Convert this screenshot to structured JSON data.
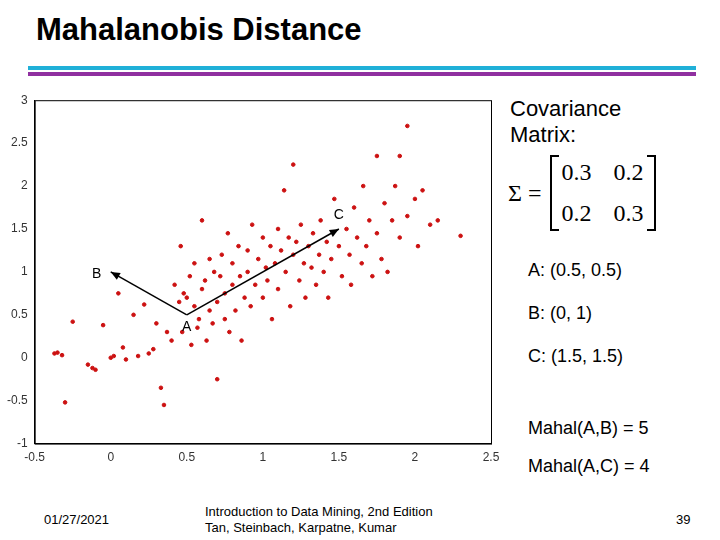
{
  "title": "Mahalanobis Distance",
  "chart_data": {
    "type": "scatter",
    "color": "#cc1111",
    "marker": "dot",
    "xlim": [
      -0.5,
      2.5
    ],
    "xticks": [
      -0.5,
      0,
      0.5,
      1,
      1.5,
      2,
      2.5
    ],
    "ylim": [
      -1,
      3
    ],
    "yticks": [
      -1,
      -0.5,
      0,
      0.5,
      1,
      1.5,
      2,
      2.5,
      3
    ],
    "grid": false,
    "x": [
      -0.37,
      -0.35,
      -0.32,
      -0.3,
      -0.25,
      -0.15,
      -0.12,
      -0.1,
      -0.05,
      0,
      0.02,
      0.05,
      0.08,
      0.1,
      0.15,
      0.18,
      0.22,
      0.25,
      0.28,
      0.3,
      0.33,
      0.35,
      0.37,
      0.4,
      0.42,
      0.45,
      0.46,
      0.47,
      0.48,
      0.5,
      0.52,
      0.53,
      0.55,
      0.55,
      0.57,
      0.58,
      0.6,
      0.6,
      0.62,
      0.63,
      0.65,
      0.65,
      0.67,
      0.68,
      0.7,
      0.7,
      0.72,
      0.73,
      0.75,
      0.75,
      0.77,
      0.78,
      0.8,
      0.8,
      0.82,
      0.84,
      0.85,
      0.86,
      0.88,
      0.9,
      0.9,
      0.92,
      0.93,
      0.95,
      0.97,
      1.0,
      1.0,
      1.02,
      1.03,
      1.05,
      1.06,
      1.08,
      1.1,
      1.1,
      1.12,
      1.14,
      1.15,
      1.17,
      1.18,
      1.2,
      1.2,
      1.22,
      1.24,
      1.25,
      1.27,
      1.28,
      1.3,
      1.32,
      1.33,
      1.35,
      1.37,
      1.38,
      1.4,
      1.42,
      1.43,
      1.45,
      1.47,
      1.5,
      1.52,
      1.55,
      1.57,
      1.58,
      1.6,
      1.62,
      1.65,
      1.66,
      1.68,
      1.7,
      1.72,
      1.75,
      1.75,
      1.78,
      1.8,
      1.82,
      1.85,
      1.87,
      1.9,
      1.9,
      1.95,
      1.95,
      2.0,
      2.02,
      2.05,
      2.1,
      2.15,
      2.3
    ],
    "values": [
      0.05,
      0.06,
      0.03,
      -0.52,
      0.42,
      -0.08,
      -0.12,
      -0.14,
      0.38,
      0.0,
      0.02,
      0.75,
      0.12,
      -0.02,
      0.5,
      0.02,
      0.62,
      0.05,
      0.1,
      0.4,
      -0.35,
      -0.55,
      0.3,
      0.2,
      0.85,
      0.65,
      1.3,
      0.3,
      0.75,
      0.7,
      0.95,
      0.15,
      0.6,
      1.1,
      0.35,
      0.45,
      0.8,
      1.6,
      0.9,
      0.2,
      1.15,
      0.55,
      0.4,
      1.0,
      0.65,
      -0.25,
      0.95,
      1.2,
      0.45,
      0.75,
      1.45,
      0.3,
      0.85,
      1.1,
      0.55,
      1.3,
      0.95,
      0.2,
      0.7,
      1.25,
      1.0,
      0.6,
      1.55,
      0.85,
      1.15,
      1.4,
      0.7,
      1.05,
      0.9,
      1.3,
      0.45,
      1.1,
      1.5,
      0.8,
      1.25,
      1.95,
      1.0,
      1.4,
      0.6,
      1.2,
      2.25,
      1.35,
      0.9,
      1.55,
      1.1,
      0.7,
      1.3,
      1.05,
      1.45,
      0.85,
      1.2,
      1.6,
      1.0,
      1.35,
      0.7,
      1.15,
      1.85,
      1.3,
      0.95,
      1.5,
      1.2,
      0.85,
      1.75,
      1.4,
      1.1,
      2.0,
      1.3,
      1.6,
      0.95,
      2.35,
      1.45,
      1.15,
      1.8,
      1.0,
      1.6,
      2.0,
      2.35,
      1.4,
      2.7,
      1.65,
      1.85,
      1.3,
      1.95,
      1.55,
      1.6,
      1.42
    ],
    "annotations": [
      {
        "text": "A",
        "x": 0.5,
        "y": 0.5
      },
      {
        "text": "B",
        "x": 0,
        "y": 1
      },
      {
        "text": "C",
        "x": 1.5,
        "y": 1.5
      }
    ],
    "arrows": [
      {
        "from": "A",
        "to": "B"
      },
      {
        "from": "A",
        "to": "C"
      }
    ]
  },
  "covariance": {
    "label": [
      "Covariance",
      "Matrix:"
    ],
    "symbol": "Σ =",
    "matrix": [
      [
        0.3,
        0.2
      ],
      [
        0.2,
        0.3
      ]
    ]
  },
  "points_text": [
    "A: (0.5, 0.5)",
    "B: (0, 1)",
    "C: (1.5, 1.5)"
  ],
  "distances_text": [
    "Mahal(A,B) = 5",
    "Mahal(A,C) = 4"
  ],
  "footer": {
    "date": "01/27/2021",
    "book": [
      "Introduction to Data Mining, 2nd Edition",
      "Tan, Steinbach, Karpatne, Kumar"
    ],
    "page": "39"
  }
}
